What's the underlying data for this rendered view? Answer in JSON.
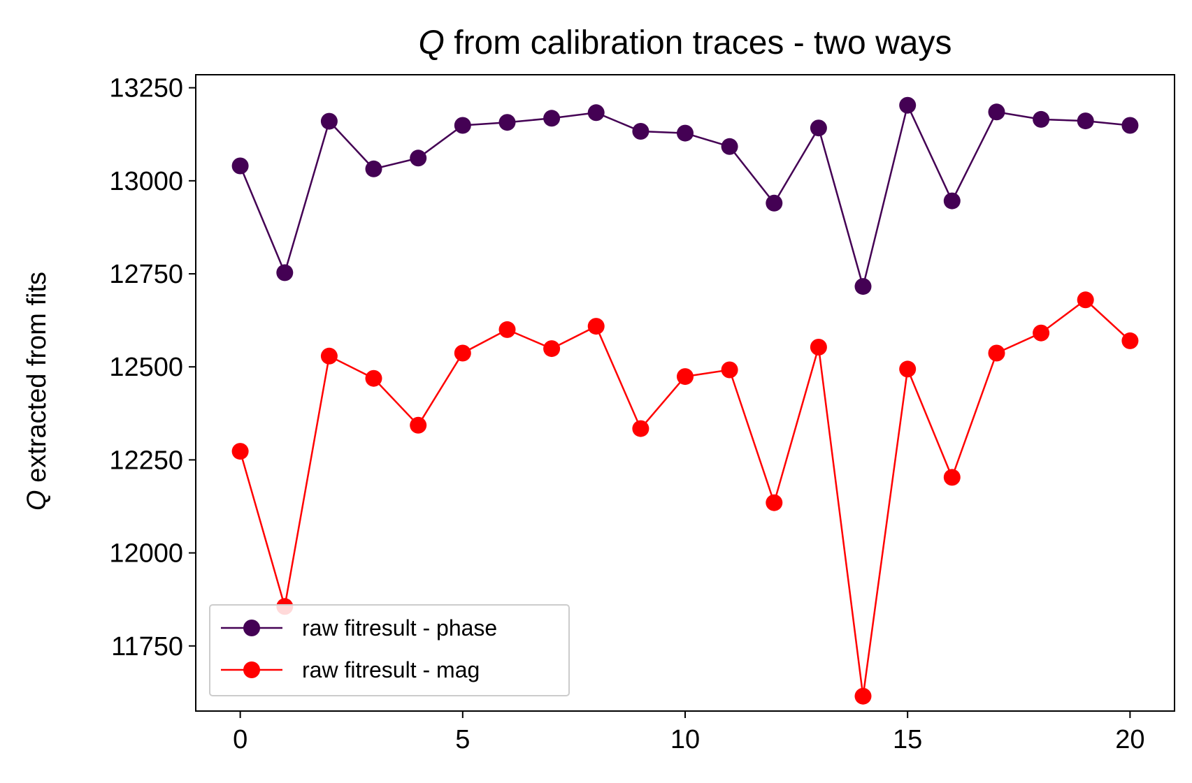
{
  "chart_data": {
    "type": "line",
    "title_symbol": "Q",
    "title_rest": " from calibration traces - two ways",
    "xlabel": "",
    "ylabel_symbol": "Q",
    "ylabel_rest": " extracted from fits",
    "xlim": [
      -1,
      21
    ],
    "ylim": [
      11575,
      13285
    ],
    "xticks": [
      0,
      5,
      10,
      15,
      20
    ],
    "yticks": [
      11750,
      12000,
      12250,
      12500,
      12750,
      13000,
      13250
    ],
    "grid": false,
    "legend_placement": "lower-left",
    "x": [
      0,
      1,
      2,
      3,
      4,
      5,
      6,
      7,
      8,
      9,
      10,
      11,
      12,
      13,
      14,
      15,
      16,
      17,
      18,
      19,
      20
    ],
    "series": [
      {
        "name": "raw fitresult - phase",
        "color": "#440154",
        "values": [
          13040,
          12753,
          13160,
          13032,
          13061,
          13149,
          13157,
          13168,
          13183,
          13133,
          13128,
          13092,
          12940,
          13142,
          12716,
          13203,
          12946,
          13185,
          13165,
          13161,
          13149
        ]
      },
      {
        "name": "raw fitresult - mag",
        "color": "#ff0000",
        "values": [
          12273,
          11856,
          12529,
          12469,
          12343,
          12537,
          12600,
          12549,
          12609,
          12334,
          12474,
          12492,
          12135,
          12553,
          11615,
          12494,
          12203,
          12537,
          12591,
          12680,
          12570
        ]
      }
    ]
  }
}
